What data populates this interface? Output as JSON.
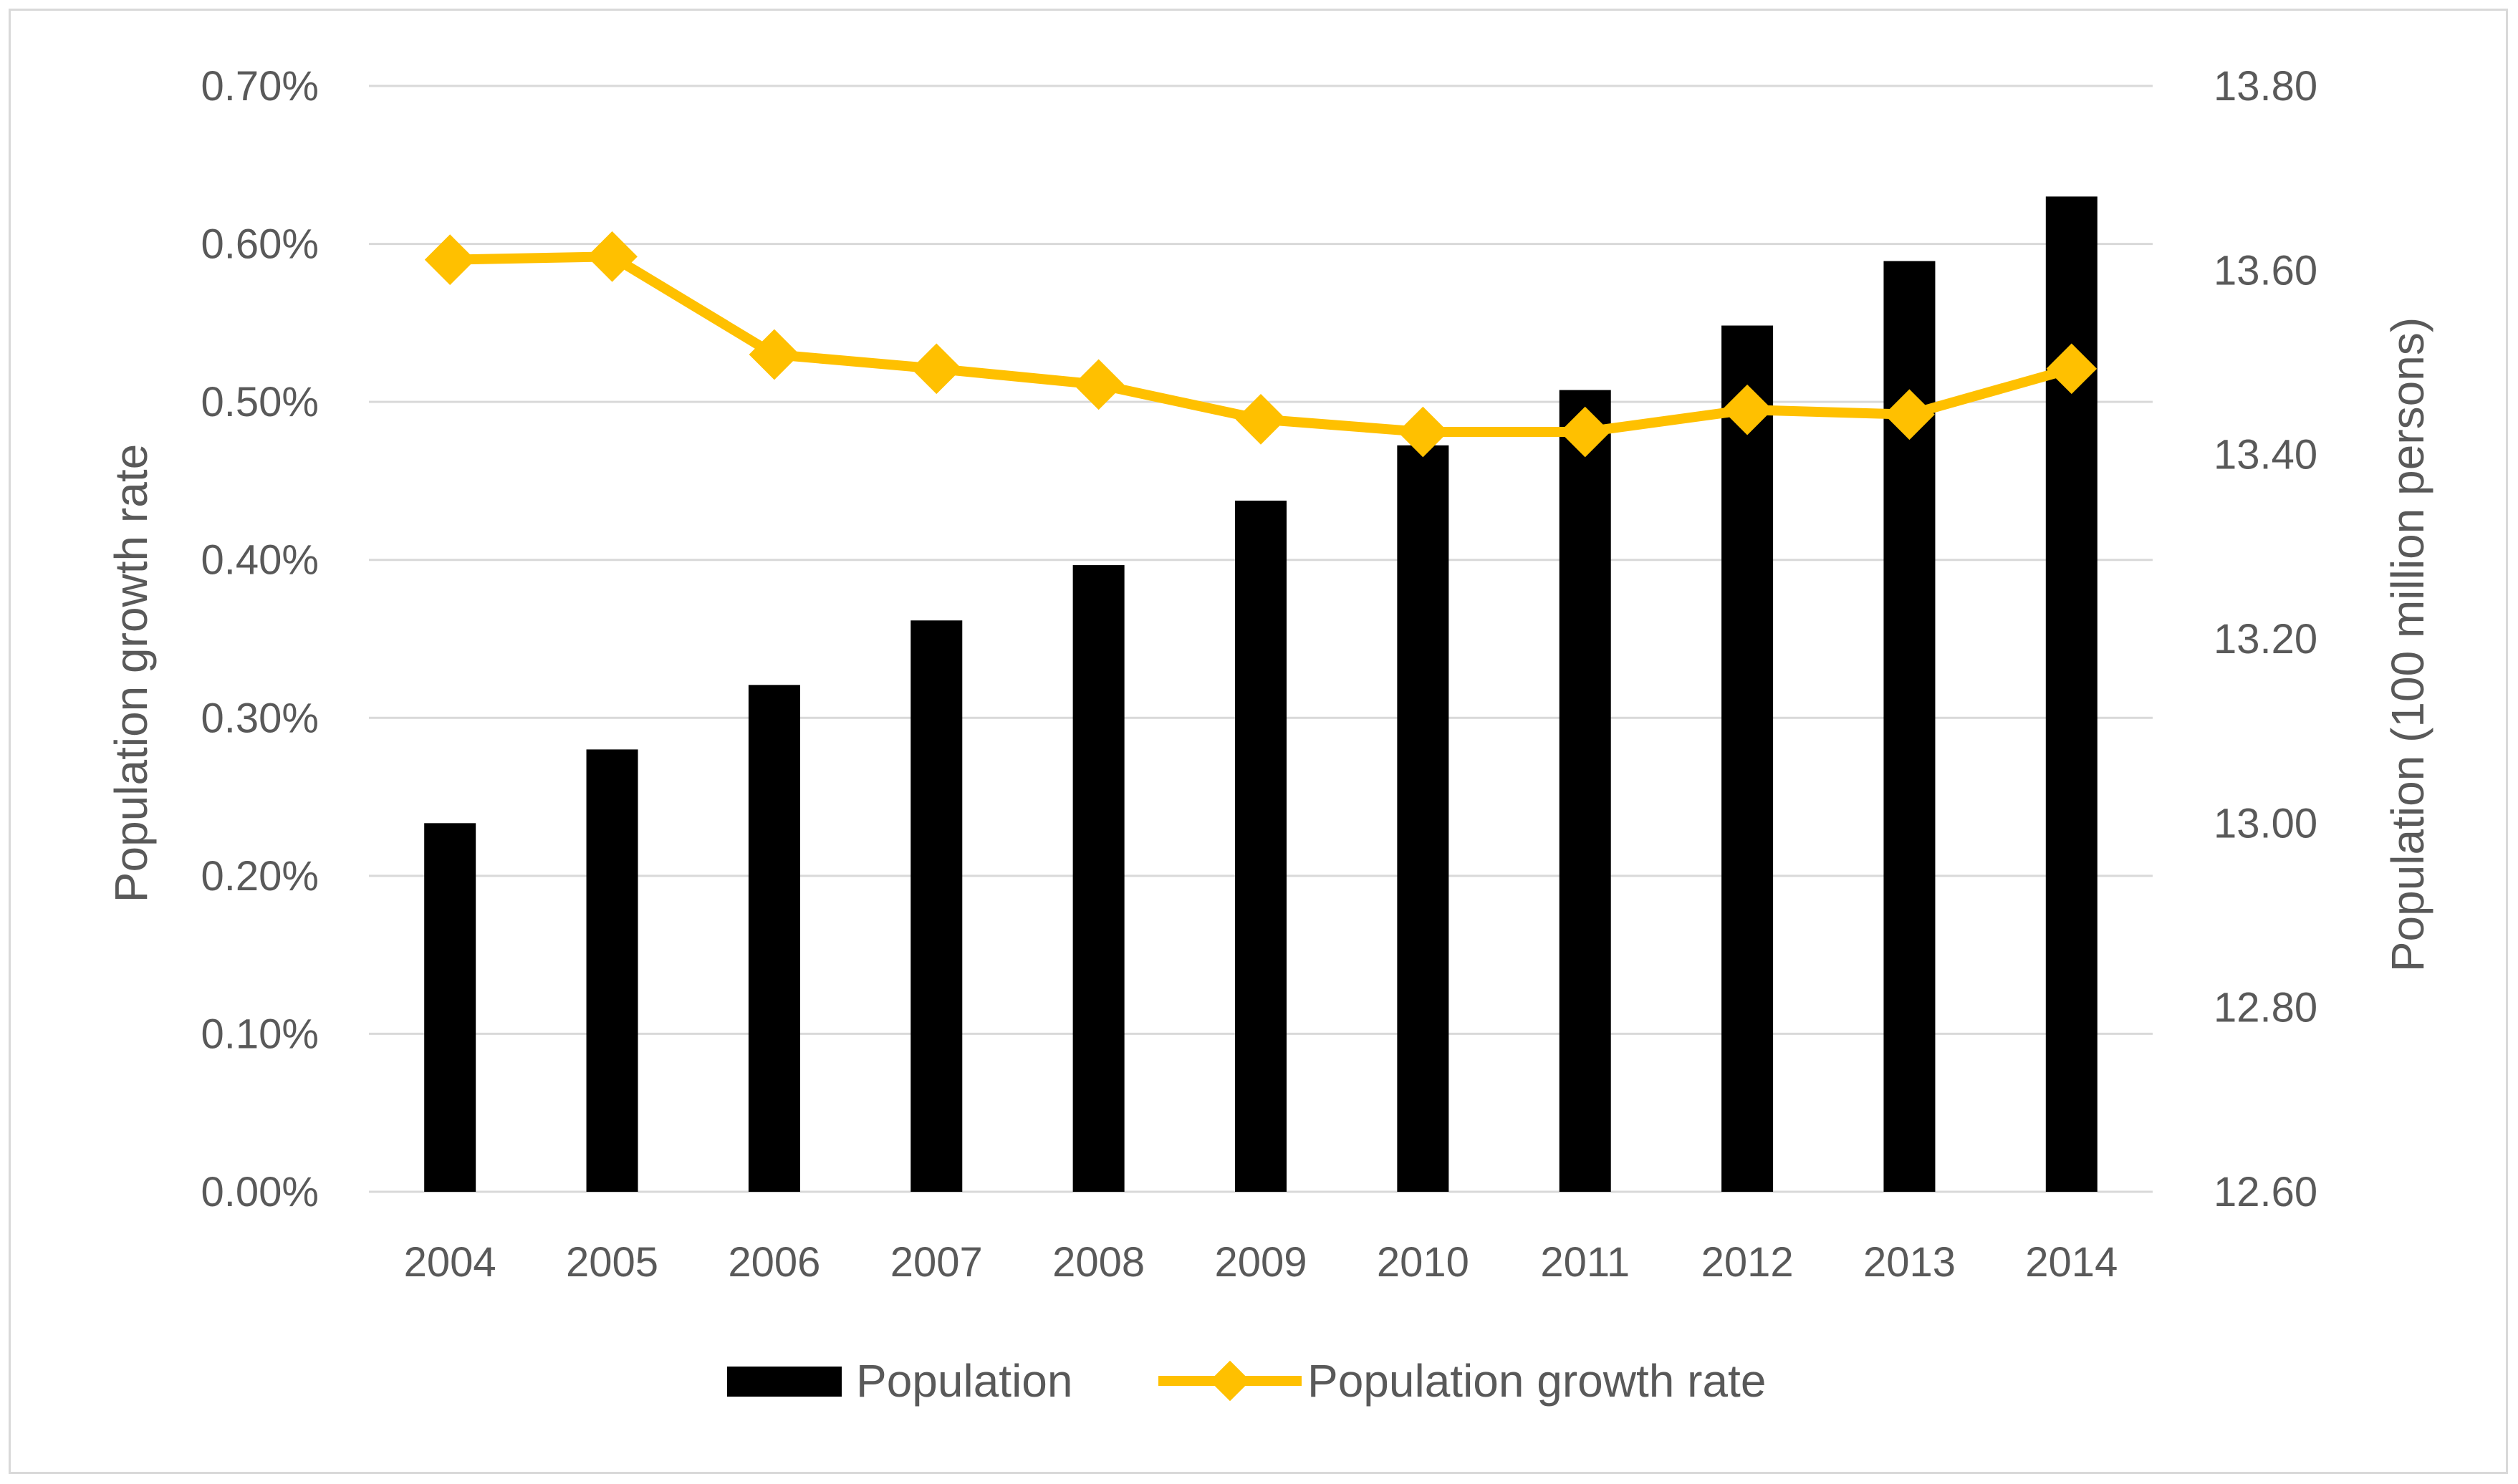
{
  "chart_data": {
    "type": "bar",
    "categories": [
      "2004",
      "2005",
      "2006",
      "2007",
      "2008",
      "2009",
      "2010",
      "2011",
      "2012",
      "2013",
      "2014"
    ],
    "series": [
      {
        "name": "Population",
        "type": "bar",
        "axis": "right",
        "values": [
          13.0,
          13.08,
          13.15,
          13.22,
          13.28,
          13.35,
          13.41,
          13.47,
          13.54,
          13.61,
          13.68
        ],
        "color": "#000000"
      },
      {
        "name": "Population growth rate",
        "type": "line",
        "axis": "left",
        "values": [
          0.0059,
          0.00592,
          0.0053,
          0.00521,
          0.00511,
          0.00489,
          0.00481,
          0.00481,
          0.00495,
          0.00492,
          0.00521
        ],
        "color": "#FFC000",
        "marker": "diamond"
      }
    ],
    "y_left": {
      "label": "Population growth rate",
      "ylim": [
        0,
        0.007
      ],
      "ticks": [
        "0.00%",
        "0.10%",
        "0.20%",
        "0.30%",
        "0.40%",
        "0.50%",
        "0.60%",
        "0.70%"
      ]
    },
    "y_right": {
      "label": "Population (100 million persons)",
      "ylim": [
        12.6,
        13.8
      ],
      "ticks": [
        "12.60",
        "12.80",
        "13.00",
        "13.20",
        "13.40",
        "13.60",
        "13.80"
      ]
    },
    "grid": true,
    "legend": {
      "position": "bottom",
      "entries": [
        "Population",
        "Population growth rate"
      ]
    }
  }
}
